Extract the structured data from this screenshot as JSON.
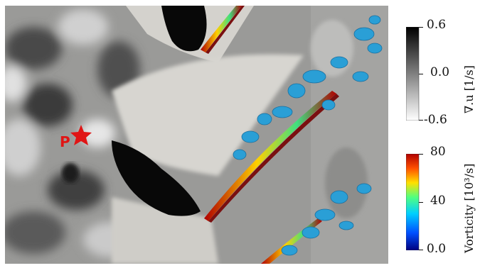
{
  "divergence_colorbar": {
    "max_label": "0.6",
    "mid_label": "0.0",
    "min_label": "-0.6",
    "title": "∇.u [1/s]",
    "colors": [
      "#000000",
      "#808080",
      "#ffffff"
    ]
  },
  "vorticity_colorbar": {
    "max_label": "80",
    "mid_label": "40",
    "min_label": "0.0",
    "title": "Vorticity [10³/s]",
    "colors": [
      "#00007f",
      "#0050ff",
      "#00cfff",
      "#50ff80",
      "#ffe000",
      "#ff5000",
      "#b00000"
    ]
  },
  "probe": {
    "label": "P",
    "marker": "star-icon",
    "color": "#e01515"
  }
}
